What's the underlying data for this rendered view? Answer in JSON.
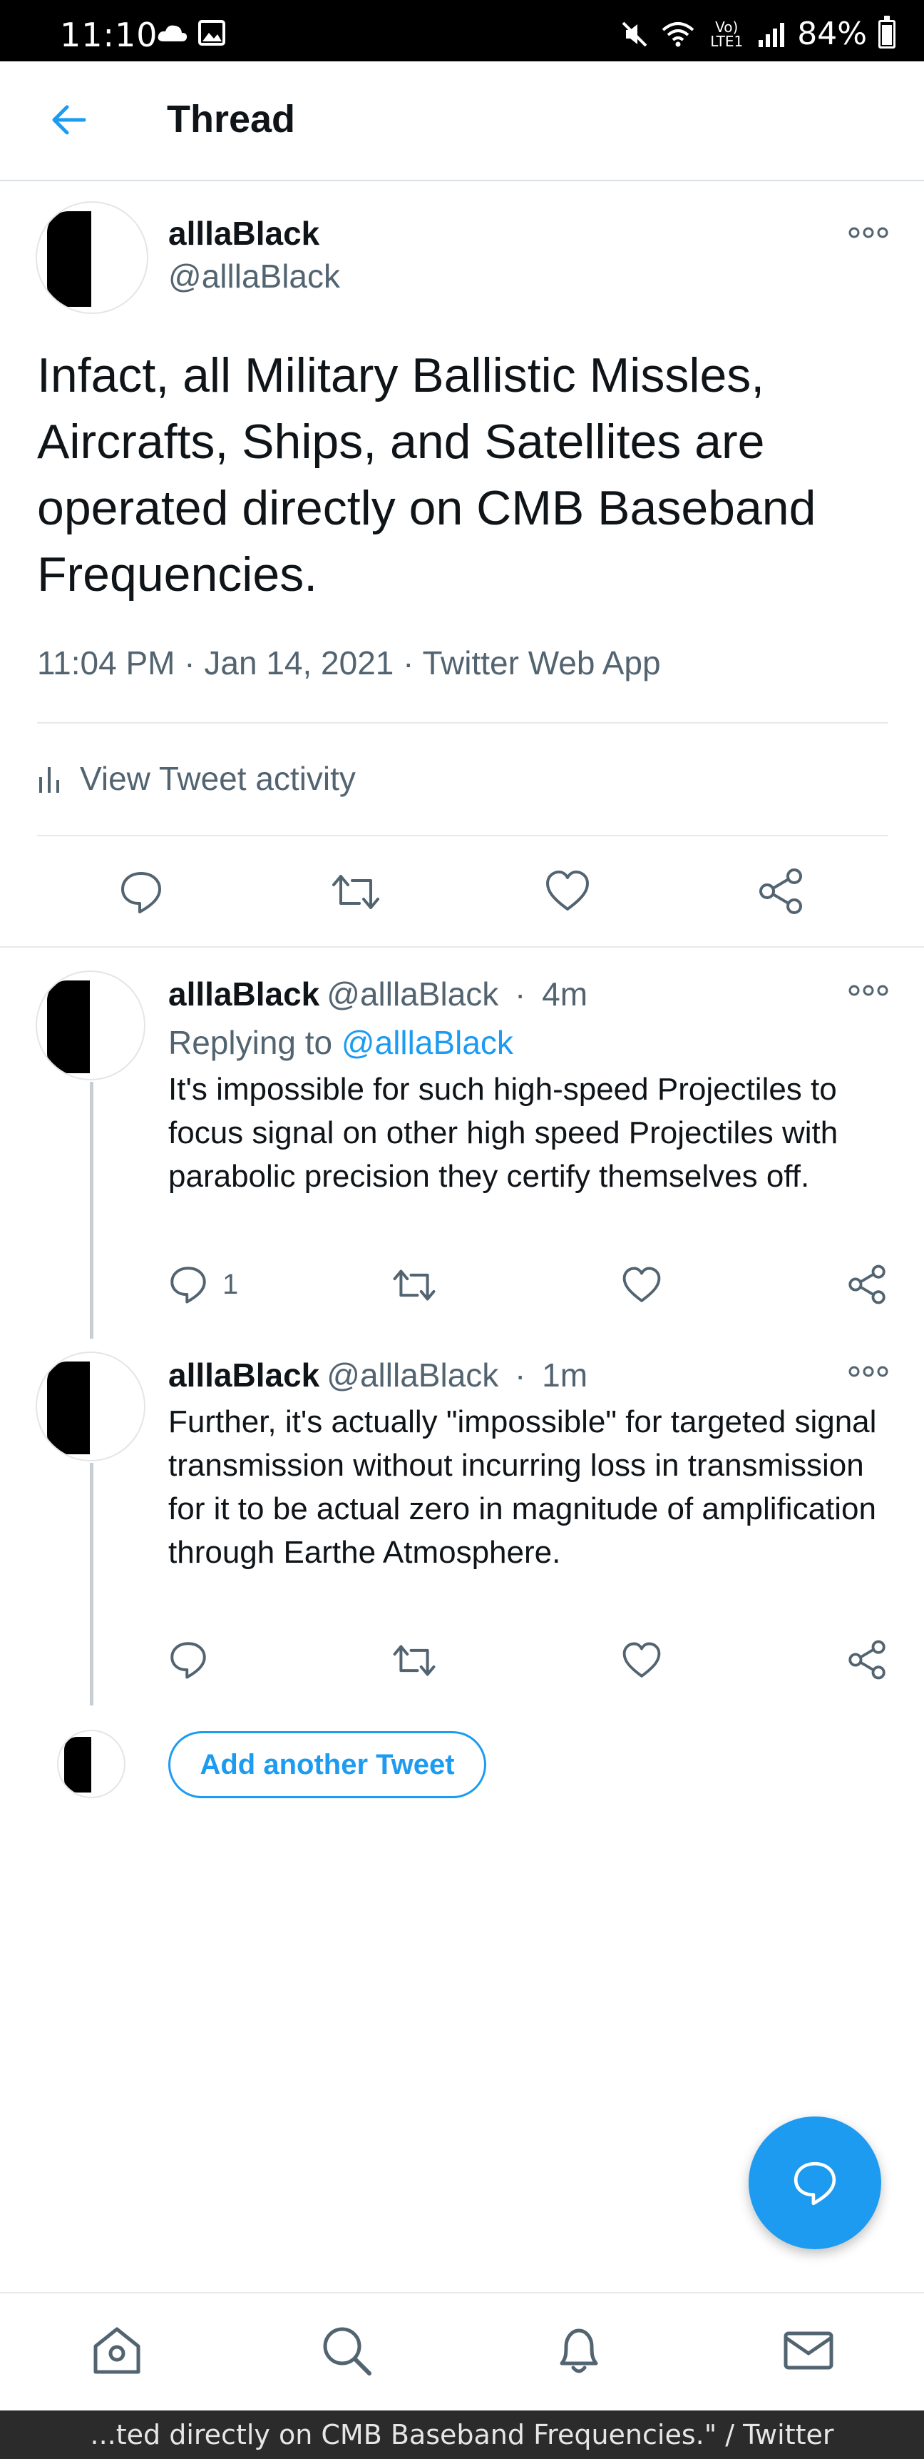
{
  "status_bar": {
    "time": "11:10",
    "network_label": "Vo) LTE1",
    "battery": "84%"
  },
  "header": {
    "title": "Thread"
  },
  "main_tweet": {
    "name": "alllaBlack",
    "handle": "@alllaBlack",
    "text": "Infact, all Military Ballistic Missles, Aircrafts, Ships, and Satellites are operated directly on CMB Baseband Frequencies.",
    "time": "11:04 PM",
    "date": "Jan 14, 2021",
    "source": "Twitter Web App",
    "activity_label": "View Tweet activity"
  },
  "replies": [
    {
      "name": "alllaBlack",
      "handle": "@alllaBlack",
      "age": "4m",
      "replying_prefix": "Replying to",
      "replying_to": "@alllaBlack",
      "text": "It's impossible for such high-speed Projectiles to focus signal on other high speed Projectiles with parabolic precision they certify themselves off.",
      "reply_count": "1"
    },
    {
      "name": "alllaBlack",
      "handle": "@alllaBlack",
      "age": "1m",
      "text": "Further, it's actually \"impossible\" for  targeted signal transmission without incurring loss in transmission for it to be actual zero in magnitude of amplification through Earthe Atmosphere.",
      "reply_count": ""
    }
  ],
  "compose": {
    "add_label": "Add another Tweet"
  },
  "footer": {
    "text": "...ted directly on CMB Baseband Frequencies.\" / Twitter"
  },
  "colors": {
    "accent": "#1d9bf0",
    "muted": "#536471",
    "text": "#0f1419",
    "divider": "#e6e9ec"
  }
}
